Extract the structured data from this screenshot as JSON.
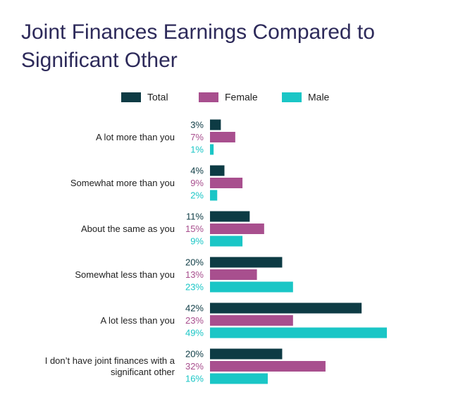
{
  "chart_data": {
    "type": "bar",
    "orientation": "horizontal",
    "title": "Joint Finances Earnings Compared to Significant Other",
    "categories": [
      "A lot more than you",
      "Somewhat more than you",
      "About the same as you",
      "Somewhat less than you",
      "A lot less than you",
      "I don’t have joint finances with a significant other"
    ],
    "series": [
      {
        "name": "Total",
        "color": "#0d3b44",
        "values": [
          3,
          4,
          11,
          20,
          42,
          20
        ],
        "value_labels": [
          "3%",
          "4%",
          "11%",
          "20%",
          "42%",
          "20%"
        ]
      },
      {
        "name": "Female",
        "color": "#a84f8e",
        "values": [
          7,
          9,
          15,
          13,
          23,
          32
        ],
        "value_labels": [
          "7%",
          "9%",
          "15%",
          "13%",
          "23%",
          "32%"
        ]
      },
      {
        "name": "Male",
        "color": "#1ac6c6",
        "values": [
          1,
          2,
          9,
          23,
          49,
          16
        ],
        "value_labels": [
          "1%",
          "2%",
          "9%",
          "23%",
          "49%",
          "16%"
        ]
      }
    ],
    "legend": "top"
  }
}
